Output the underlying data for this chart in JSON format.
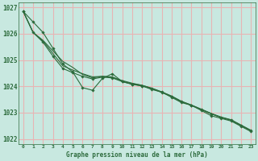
{
  "title": "Graphe pression niveau de la mer (hPa)",
  "background_color": "#c8e8e0",
  "plot_bg_color": "#c8e8e0",
  "line_color": "#2d6b3c",
  "grid_color": "#e8b4b4",
  "text_color": "#2d6b3c",
  "xlabel_color": "#2d6b3c",
  "xlim": [
    -0.5,
    23.5
  ],
  "ylim": [
    1021.8,
    1027.2
  ],
  "yticks": [
    1022,
    1023,
    1024,
    1025,
    1026,
    1027
  ],
  "xticks": [
    0,
    1,
    2,
    3,
    4,
    5,
    6,
    7,
    8,
    9,
    10,
    11,
    12,
    13,
    14,
    15,
    16,
    17,
    18,
    19,
    20,
    21,
    22,
    23
  ],
  "line1_y": [
    1026.85,
    1026.45,
    1026.05,
    1025.45,
    1024.85,
    1024.55,
    1023.95,
    1023.85,
    1024.3,
    1024.48,
    1024.18,
    1024.08,
    1024.02,
    1023.88,
    1023.78,
    1023.58,
    1023.38,
    1023.28,
    1023.08,
    1022.88,
    1022.78,
    1022.68,
    1022.48,
    1022.28
  ],
  "line2_y": [
    1026.85,
    1026.05,
    1025.75,
    1025.35,
    1024.95,
    1024.72,
    1024.45,
    1024.32,
    1024.38,
    1024.36,
    1024.2,
    1024.1,
    1024.04,
    1023.92,
    1023.78,
    1023.62,
    1023.42,
    1023.28,
    1023.12,
    1022.96,
    1022.82,
    1022.72,
    1022.52,
    1022.32
  ],
  "line3_y": [
    1026.85,
    1026.05,
    1025.72,
    1025.25,
    1024.78,
    1024.62,
    1024.48,
    1024.36,
    1024.38,
    1024.34,
    1024.22,
    1024.12,
    1024.04,
    1023.93,
    1023.79,
    1023.63,
    1023.43,
    1023.29,
    1023.13,
    1022.97,
    1022.83,
    1022.73,
    1022.53,
    1022.33
  ],
  "line4_y": [
    1026.85,
    1026.05,
    1025.68,
    1025.15,
    1024.68,
    1024.52,
    1024.38,
    1024.28,
    1024.35,
    1024.32,
    1024.18,
    1024.08,
    1024.01,
    1023.91,
    1023.77,
    1023.61,
    1023.41,
    1023.27,
    1023.11,
    1022.95,
    1022.81,
    1022.71,
    1022.51,
    1022.31
  ],
  "marker_x": [
    0,
    1,
    2,
    3,
    4,
    5,
    6,
    7,
    8,
    9,
    10,
    11,
    12,
    13,
    14,
    15,
    16,
    17,
    18,
    19,
    20,
    21,
    22,
    23
  ]
}
